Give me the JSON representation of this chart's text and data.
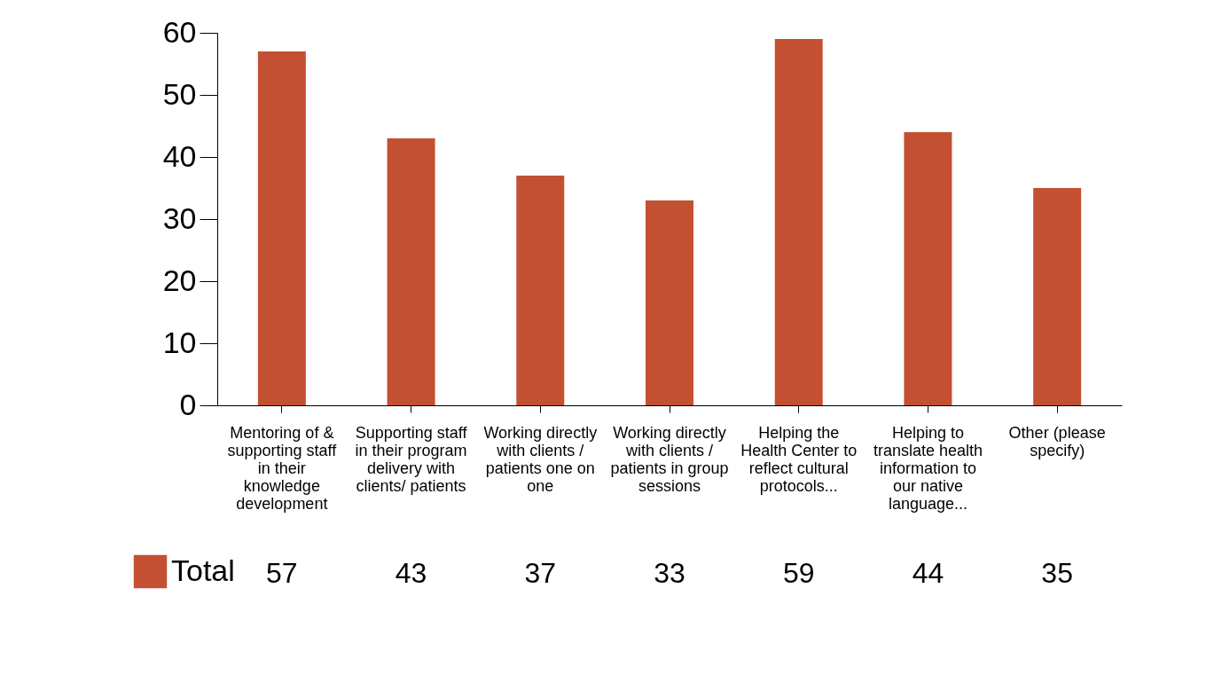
{
  "chart_data": {
    "type": "bar",
    "categories": [
      "Mentoring of & supporting staff in their knowledge development",
      "Supporting staff in their program delivery with clients/ patients",
      "Working directly with clients / patients one on one",
      "Working directly with clients / patients in group sessions",
      "Helping the Health Center to reflect cultural protocols...",
      "Helping to translate health information to our native language...",
      "Other (please specify)"
    ],
    "series": [
      {
        "name": "Total",
        "color": "#c45033",
        "values": [
          57,
          43,
          37,
          33,
          59,
          44,
          35
        ]
      }
    ],
    "ylim": [
      0,
      60
    ],
    "yticks": [
      0,
      10,
      20,
      30,
      40,
      50,
      60
    ],
    "grid": false,
    "legend": "bottom left",
    "data_labels": true
  }
}
